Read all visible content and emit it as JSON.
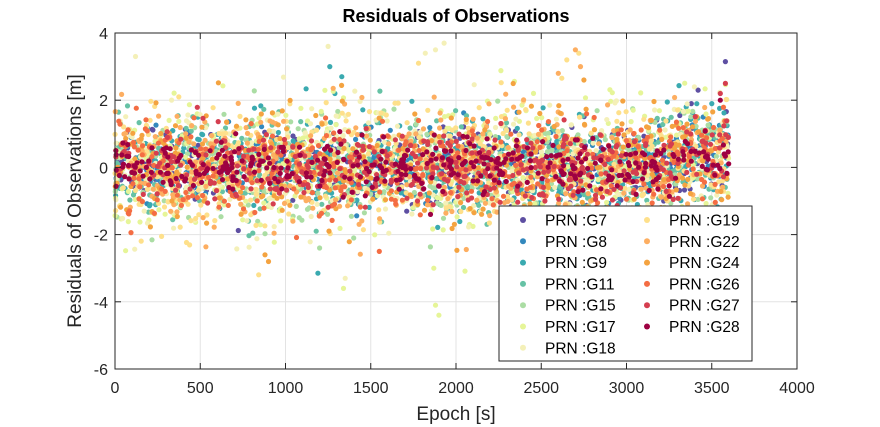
{
  "chart_data": {
    "type": "scatter",
    "title": "Residuals of Observations",
    "xlabel": "Epoch [s]",
    "ylabel": "Residuals of Observations [m]",
    "xlim": [
      0,
      4000
    ],
    "ylim": [
      -6,
      4
    ],
    "xticks": [
      0,
      500,
      1000,
      1500,
      2000,
      2500,
      3000,
      3500,
      4000
    ],
    "yticks": [
      -6,
      -4,
      -2,
      0,
      2,
      4
    ],
    "grid": true,
    "legend_position": "lower-right",
    "legend_columns": 2,
    "epoch_range": [
      0,
      3600
    ],
    "series": [
      {
        "name": "PRN :G7",
        "color": "#5e4fa2",
        "spread": 0.55,
        "extremes": [
          [
            3580,
            3.15
          ],
          [
            3420,
            2.3
          ],
          [
            3380,
            1.9
          ]
        ]
      },
      {
        "name": "PRN :G8",
        "color": "#3288bd",
        "spread": 0.55,
        "extremes": [
          [
            3450,
            1.5
          ],
          [
            3300,
            1.3
          ]
        ]
      },
      {
        "name": "PRN :G9",
        "color": "#3aaab0",
        "spread": 0.75,
        "extremes": [
          [
            1330,
            2.7
          ],
          [
            1260,
            3.0
          ],
          [
            1190,
            -3.15
          ],
          [
            1290,
            2.2
          ],
          [
            3500,
            1.9
          ],
          [
            3350,
            1.8
          ]
        ]
      },
      {
        "name": "PRN :G11",
        "color": "#66c2a5",
        "spread": 0.75,
        "extremes": [
          [
            1180,
            -1.9
          ],
          [
            2300,
            -1.8
          ]
        ]
      },
      {
        "name": "PRN :G15",
        "color": "#abdda4",
        "spread": 0.8,
        "extremes": [
          [
            1200,
            -2.4
          ],
          [
            1400,
            -2.1
          ]
        ]
      },
      {
        "name": "PRN :G17",
        "color": "#e6f598",
        "spread": 1.0,
        "extremes": [
          [
            1900,
            -4.4
          ],
          [
            1880,
            -4.1
          ],
          [
            1340,
            -3.6
          ],
          [
            1870,
            -3.0
          ]
        ]
      },
      {
        "name": "PRN :G18",
        "color": "#f4f0b8",
        "spread": 1.0,
        "extremes": [
          [
            1930,
            3.7
          ],
          [
            1880,
            3.5
          ],
          [
            1820,
            3.4
          ],
          [
            120,
            3.3
          ],
          [
            1350,
            -3.3
          ],
          [
            1250,
            3.6
          ]
        ]
      },
      {
        "name": "PRN :G19",
        "color": "#fee08b",
        "spread": 0.9,
        "extremes": [
          [
            1780,
            3.1
          ],
          [
            2720,
            3.4
          ],
          [
            2650,
            3.2
          ]
        ]
      },
      {
        "name": "PRN :G22",
        "color": "#fdae61",
        "spread": 0.85,
        "extremes": [
          [
            2700,
            3.5
          ],
          [
            2730,
            3.0
          ],
          [
            2600,
            2.8
          ]
        ]
      },
      {
        "name": "PRN :G24",
        "color": "#f4a340",
        "spread": 0.8,
        "extremes": [
          [
            900,
            -2.8
          ],
          [
            880,
            -2.6
          ],
          [
            2750,
            2.6
          ]
        ]
      },
      {
        "name": "PRN :G26",
        "color": "#f46d43",
        "spread": 0.7,
        "extremes": [
          [
            1550,
            -2.5
          ],
          [
            2650,
            -2.3
          ]
        ]
      },
      {
        "name": "PRN :G27",
        "color": "#d53e4f",
        "spread": 0.55,
        "extremes": [
          [
            3580,
            2.5
          ],
          [
            3550,
            2.2
          ]
        ]
      },
      {
        "name": "PRN :G28",
        "color": "#9e0142",
        "spread": 0.4,
        "extremes": [
          [
            3550,
            2.0
          ]
        ]
      }
    ]
  }
}
